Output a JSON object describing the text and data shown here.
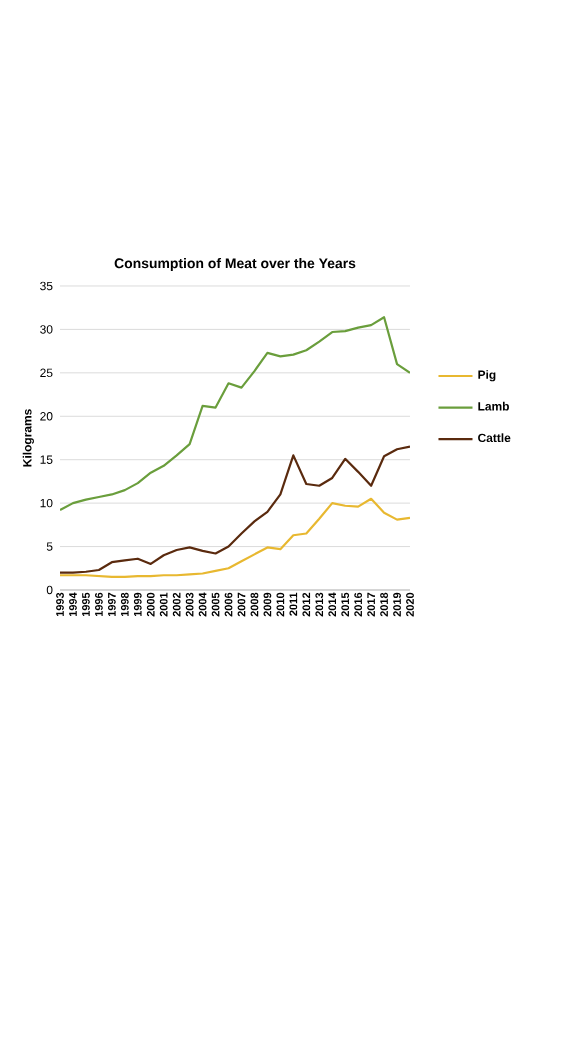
{
  "chart_data": {
    "type": "line",
    "title": "Consumption of Meat over the Years",
    "ylabel": "Kilograms",
    "categories": [
      "1993",
      "1994",
      "1995",
      "1996",
      "1997",
      "1998",
      "1999",
      "2000",
      "2001",
      "2002",
      "2003",
      "2004",
      "2005",
      "2006",
      "2007",
      "2008",
      "2009",
      "2010",
      "2011",
      "2012",
      "2013",
      "2014",
      "2015",
      "2016",
      "2017",
      "2018",
      "2019",
      "2020"
    ],
    "series": [
      {
        "name": "Pig",
        "color": "#e8b830",
        "values": [
          1.7,
          1.7,
          1.7,
          1.6,
          1.5,
          1.5,
          1.6,
          1.6,
          1.7,
          1.7,
          1.8,
          1.9,
          2.2,
          2.5,
          3.3,
          4.1,
          4.9,
          4.7,
          6.3,
          6.5,
          8.2,
          10,
          9.7,
          9.6,
          10.5,
          8.9,
          8.1,
          8.3
        ]
      },
      {
        "name": "Lamb",
        "color": "#6a9e3c",
        "values": [
          9.2,
          10,
          10.4,
          10.7,
          11,
          11.5,
          12.3,
          13.5,
          14.3,
          15.5,
          16.8,
          21.2,
          21,
          23.8,
          23.3,
          25.2,
          27.3,
          26.9,
          27.1,
          27.6,
          28.6,
          29.7,
          29.8,
          30.2,
          30.5,
          31.4,
          26,
          25
        ]
      },
      {
        "name": "Cattle",
        "color": "#5a2a0e",
        "values": [
          2,
          2,
          2.1,
          2.3,
          3.2,
          3.4,
          3.6,
          3,
          4,
          4.6,
          4.9,
          4.5,
          4.2,
          5,
          6.5,
          7.9,
          9,
          11,
          15.5,
          12.2,
          12,
          12.9,
          15.1,
          13.6,
          12,
          15.4,
          16.2,
          16.5
        ]
      }
    ],
    "ylim": [
      0,
      35
    ],
    "yticks": [
      0,
      5,
      10,
      15,
      20,
      25,
      30,
      35
    ],
    "grid": "y",
    "legend": "right",
    "marker": "none",
    "line_style": "solid"
  }
}
